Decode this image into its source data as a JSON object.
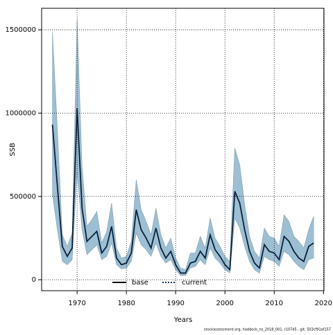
{
  "chart_data": {
    "type": "line",
    "xlabel": "Years",
    "ylabel": "SSB",
    "footnote": "stockassessment.org, haddock_ns_2018_001, r10745 , git: 503cf91af157",
    "x": [
      1965,
      1966,
      1967,
      1968,
      1969,
      1970,
      1971,
      1972,
      1973,
      1974,
      1975,
      1976,
      1977,
      1978,
      1979,
      1980,
      1981,
      1982,
      1983,
      1984,
      1985,
      1986,
      1987,
      1988,
      1989,
      1990,
      1991,
      1992,
      1993,
      1994,
      1995,
      1996,
      1997,
      1998,
      1999,
      2000,
      2001,
      2002,
      2003,
      2004,
      2005,
      2006,
      2007,
      2008,
      2009,
      2010,
      2011,
      2012,
      2013,
      2014,
      2015,
      2016,
      2017,
      2018
    ],
    "series": [
      {
        "name": "base",
        "color": "#000000",
        "style": "solid",
        "values": [
          930000,
          560000,
          200000,
          140000,
          190000,
          1030000,
          430000,
          230000,
          260000,
          290000,
          160000,
          200000,
          320000,
          130000,
          90000,
          100000,
          160000,
          420000,
          300000,
          250000,
          190000,
          310000,
          190000,
          130000,
          170000,
          90000,
          40000,
          40000,
          100000,
          110000,
          170000,
          130000,
          270000,
          180000,
          140000,
          90000,
          60000,
          530000,
          460000,
          300000,
          170000,
          100000,
          70000,
          210000,
          170000,
          160000,
          120000,
          260000,
          230000,
          170000,
          130000,
          110000,
          200000,
          220000
        ]
      },
      {
        "name": "current",
        "color": "#0d2f5e",
        "style": "dotted",
        "values": [
          930000,
          560000,
          200000,
          140000,
          190000,
          1030000,
          430000,
          230000,
          260000,
          290000,
          160000,
          200000,
          320000,
          130000,
          90000,
          100000,
          160000,
          420000,
          300000,
          250000,
          190000,
          310000,
          190000,
          130000,
          170000,
          90000,
          40000,
          40000,
          100000,
          110000,
          170000,
          130000,
          270000,
          180000,
          140000,
          90000,
          60000,
          530000,
          460000,
          300000,
          170000,
          100000,
          70000,
          210000,
          170000,
          160000,
          120000,
          260000,
          230000,
          170000,
          130000,
          110000,
          200000,
          220000
        ]
      }
    ],
    "band": {
      "color": "#9dbfd3",
      "upper": [
        1490000,
        900000,
        270000,
        200000,
        280000,
        1560000,
        680000,
        320000,
        360000,
        410000,
        220000,
        290000,
        460000,
        190000,
        130000,
        140000,
        230000,
        600000,
        420000,
        350000,
        270000,
        430000,
        270000,
        190000,
        250000,
        130000,
        70000,
        60000,
        160000,
        160000,
        260000,
        190000,
        370000,
        250000,
        200000,
        140000,
        110000,
        790000,
        690000,
        450000,
        260000,
        170000,
        130000,
        310000,
        260000,
        250000,
        200000,
        390000,
        350000,
        260000,
        230000,
        190000,
        300000,
        380000
      ],
      "lower": [
        510000,
        300000,
        110000,
        90000,
        120000,
        650000,
        300000,
        150000,
        180000,
        210000,
        120000,
        140000,
        220000,
        90000,
        65000,
        70000,
        110000,
        280000,
        210000,
        180000,
        140000,
        220000,
        140000,
        100000,
        120000,
        60000,
        25000,
        25000,
        70000,
        80000,
        120000,
        90000,
        190000,
        130000,
        100000,
        60000,
        40000,
        370000,
        310000,
        200000,
        110000,
        60000,
        40000,
        140000,
        120000,
        110000,
        80000,
        170000,
        150000,
        110000,
        80000,
        60000,
        120000,
        130000
      ]
    },
    "xlim": [
      1962.8,
      2020.1
    ],
    "ylim": [
      -66000,
      1629000
    ],
    "xticks": [
      1970,
      1980,
      1990,
      2000,
      2010,
      2020
    ],
    "yticks": [
      0,
      500000,
      1000000,
      1500000
    ],
    "grid": true,
    "legend": "bottom"
  }
}
